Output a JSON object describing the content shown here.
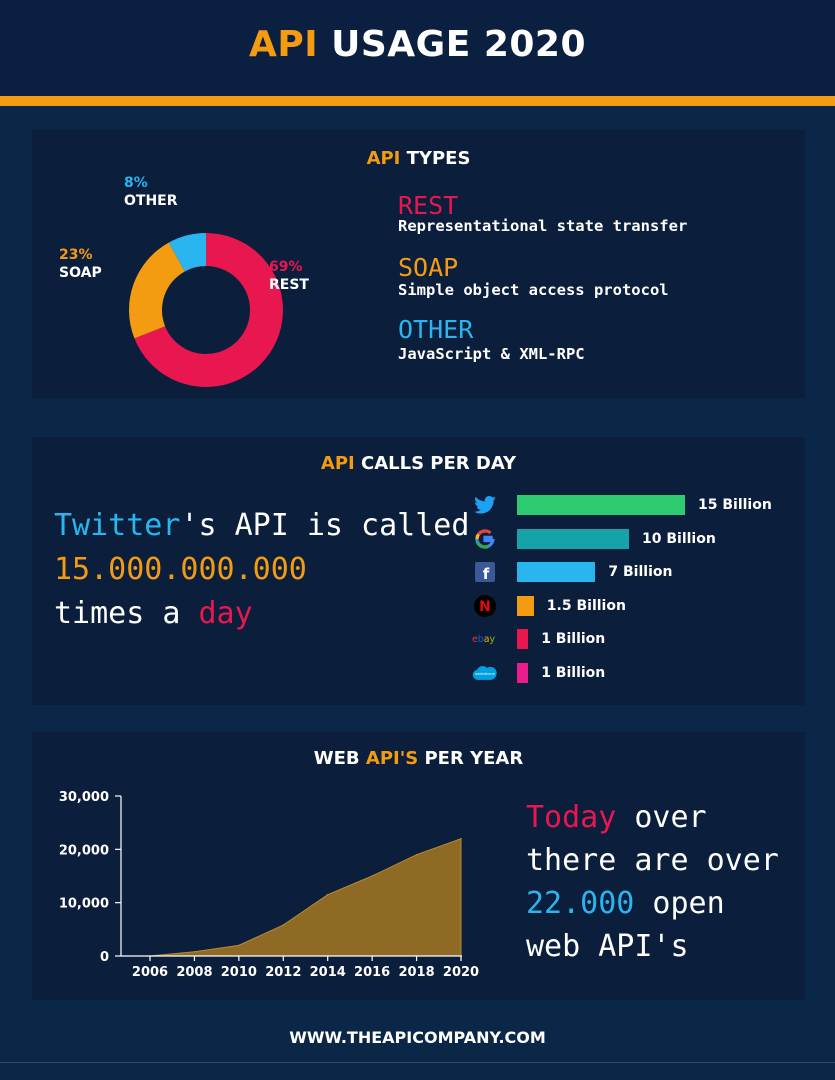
{
  "header": {
    "title_accent": "API",
    "title_rest": " USAGE 2020"
  },
  "colors": {
    "orange": "#f39c12",
    "rest": "#e8174f",
    "soap": "#f39c12",
    "other": "#29b5f0"
  },
  "types_panel": {
    "title_accent": "API",
    "title_rest": " TYPES",
    "legend": [
      {
        "name": "REST",
        "desc": "Representational state transfer"
      },
      {
        "name": "SOAP",
        "desc": "Simple object access protocol"
      },
      {
        "name": "OTHER",
        "desc": "JavaScript & XML-RPC"
      }
    ]
  },
  "calls_panel": {
    "title_accent": "API",
    "title_rest": " CALLS PER DAY",
    "text": {
      "l1_accent": "Twitter",
      "l1_rest": "'s API is called",
      "l2": "15.000.000.000",
      "l3_pre": "times a ",
      "l3_accent": "day"
    }
  },
  "web_panel": {
    "title_pre": "WEB ",
    "title_accent": "API'S",
    "title_rest": " PER YEAR",
    "text": {
      "l1_accent": "Today",
      "l1_rest": " over",
      "l2": "there are over",
      "l3_accent": "22.000",
      "l3_rest": " open",
      "l4": "web API's"
    }
  },
  "footer": {
    "url": "WWW.THEAPICOMPANY.COM"
  },
  "chart_data": [
    {
      "type": "pie",
      "title": "API TYPES",
      "categories": [
        "REST",
        "SOAP",
        "OTHER"
      ],
      "values": [
        69,
        23,
        8
      ],
      "value_labels": [
        "69%",
        "23%",
        "8%"
      ],
      "colors": [
        "#e8174f",
        "#f39c12",
        "#29b5f0"
      ]
    },
    {
      "type": "bar",
      "orientation": "horizontal",
      "title": "API CALLS PER DAY",
      "categories": [
        "twitter",
        "google",
        "facebook",
        "netflix",
        "ebay",
        "salesforce"
      ],
      "values": [
        15,
        10,
        7,
        1.5,
        1,
        1
      ],
      "value_labels": [
        "15 Billion",
        "10 Billion",
        "7 Billion",
        "1.5 Billion",
        "1 Billion",
        "1 Billion"
      ],
      "icons": [
        "twitter-icon",
        "google-icon",
        "facebook-icon",
        "netflix-icon",
        "ebay-icon",
        "salesforce-icon"
      ],
      "colors": [
        "#2ecc71",
        "#16a3a8",
        "#29b5f0",
        "#f39c12",
        "#e8174f",
        "#e91e8c"
      ]
    },
    {
      "type": "area",
      "title": "WEB API'S PER YEAR",
      "x": [
        2006,
        2008,
        2010,
        2012,
        2014,
        2016,
        2018,
        2020
      ],
      "y": [
        0,
        800,
        2000,
        5800,
        11500,
        15000,
        19000,
        22000
      ],
      "xticks": [
        "2006",
        "2008",
        "2010",
        "2012",
        "2014",
        "2016",
        "2018",
        "2020"
      ],
      "yticks": [
        "0",
        "10,000",
        "20,000",
        "30,000"
      ],
      "ylim": [
        0,
        30000
      ],
      "fill_color": "#8e6a25",
      "grid": false
    }
  ]
}
